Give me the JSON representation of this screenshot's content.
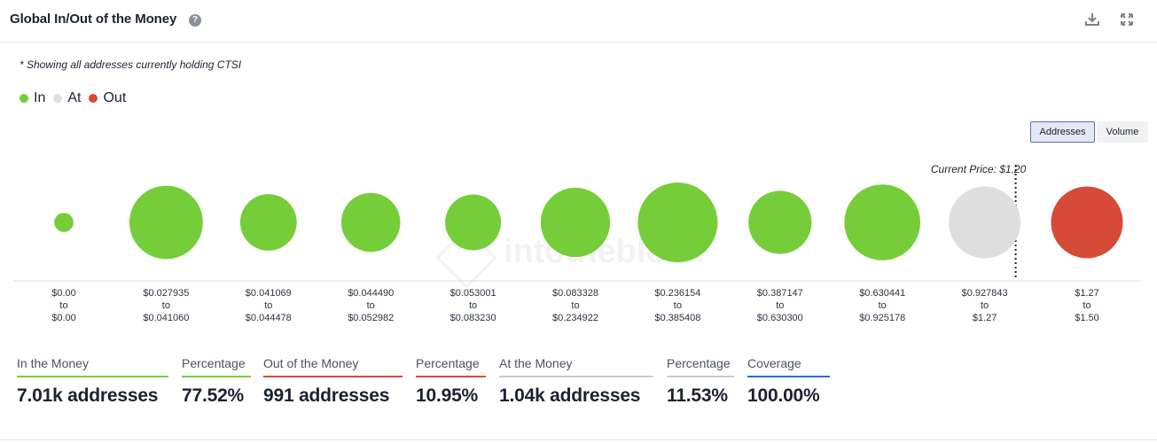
{
  "header": {
    "title": "Global In/Out of the Money",
    "help_glyph": "?"
  },
  "note": "* Showing all addresses currently holding CTSI",
  "legend": [
    {
      "label": "In",
      "color": "#76cd3a"
    },
    {
      "label": "At",
      "color": "#dedede"
    },
    {
      "label": "Out",
      "color": "#d64a38"
    }
  ],
  "toggles": {
    "addresses": "Addresses",
    "volume": "Volume",
    "selected": "Addresses"
  },
  "chart_data": {
    "type": "bubble",
    "current_price_label": "Current Price: $1.20",
    "watermark": "intotheblock",
    "colors": {
      "In": "#76cd3a",
      "At": "#dedede",
      "Out": "#d64a38"
    },
    "ranges": [
      {
        "low": "$0.00",
        "to": "to",
        "high": "$0.00",
        "status": "In",
        "relative_size": 0.24
      },
      {
        "low": "$0.027935",
        "to": "to",
        "high": "$0.041060",
        "status": "In",
        "relative_size": 0.92
      },
      {
        "low": "$0.041069",
        "to": "to",
        "high": "$0.044478",
        "status": "In",
        "relative_size": 0.71
      },
      {
        "low": "$0.044490",
        "to": "to",
        "high": "$0.052982",
        "status": "In",
        "relative_size": 0.74
      },
      {
        "low": "$0.053001",
        "to": "to",
        "high": "$0.083230",
        "status": "In",
        "relative_size": 0.7
      },
      {
        "low": "$0.083328",
        "to": "to",
        "high": "$0.234922",
        "status": "In",
        "relative_size": 0.87
      },
      {
        "low": "$0.236154",
        "to": "to",
        "high": "$0.385408",
        "status": "In",
        "relative_size": 1.0
      },
      {
        "low": "$0.387147",
        "to": "to",
        "high": "$0.630300",
        "status": "In",
        "relative_size": 0.79
      },
      {
        "low": "$0.630441",
        "to": "to",
        "high": "$0.925178",
        "status": "In",
        "relative_size": 0.95
      },
      {
        "low": "$0.927843",
        "to": "to",
        "high": "$1.27",
        "status": "At",
        "relative_size": 0.9
      },
      {
        "low": "$1.27",
        "to": "to",
        "high": "$1.50",
        "status": "Out",
        "relative_size": 0.9
      }
    ]
  },
  "stats": [
    {
      "label": "In the Money",
      "value": "7.01k addresses",
      "color": "#76cd3a"
    },
    {
      "label": "Percentage",
      "value": "77.52%",
      "color": "#76cd3a"
    },
    {
      "label": "Out of the Money",
      "value": "991 addresses",
      "color": "#d64a38"
    },
    {
      "label": "Percentage",
      "value": "10.95%",
      "color": "#d64a38"
    },
    {
      "label": "At the Money",
      "value": "1.04k addresses",
      "color": "#cccccc"
    },
    {
      "label": "Percentage",
      "value": "11.53%",
      "color": "#cccccc"
    },
    {
      "label": "Coverage",
      "value": "100.00%",
      "color": "#2d6bd8"
    }
  ]
}
